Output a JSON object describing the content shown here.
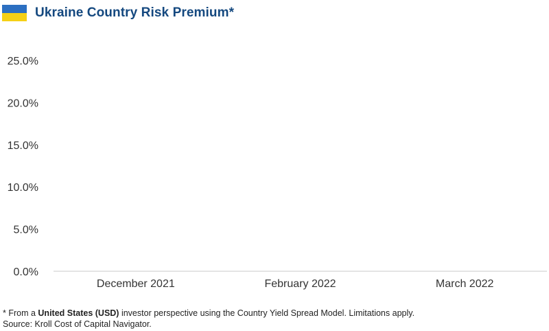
{
  "header": {
    "title": "Ukraine Country Risk Premium*",
    "flag_colors": [
      "#2c6fc1",
      "#f5d016"
    ]
  },
  "chart_data": {
    "type": "bar",
    "title": "Ukraine Country Risk Premium*",
    "categories": [
      "December 2021",
      "February 2022",
      "March 2022"
    ],
    "series": [
      {
        "values": [
          null,
          null,
          null
        ]
      }
    ],
    "y_tick_labels": [
      "0.0%",
      "5.0%",
      "10.0%",
      "15.0%",
      "20.0%",
      "25.0%"
    ],
    "y_ticks": [
      0,
      5,
      10,
      15,
      20,
      25
    ],
    "ylim": [
      0,
      25
    ],
    "grid": false,
    "colors": {
      "axis": "#c8c8c8",
      "bar": "#1f4f8c"
    }
  },
  "footnote": {
    "line1_prefix": "* From a ",
    "line1_bold": "United States (USD)",
    "line1_suffix": " investor perspective using the Country Yield Spread Model. Limitations apply.",
    "line2": "Source: Kroll Cost of Capital Navigator."
  }
}
